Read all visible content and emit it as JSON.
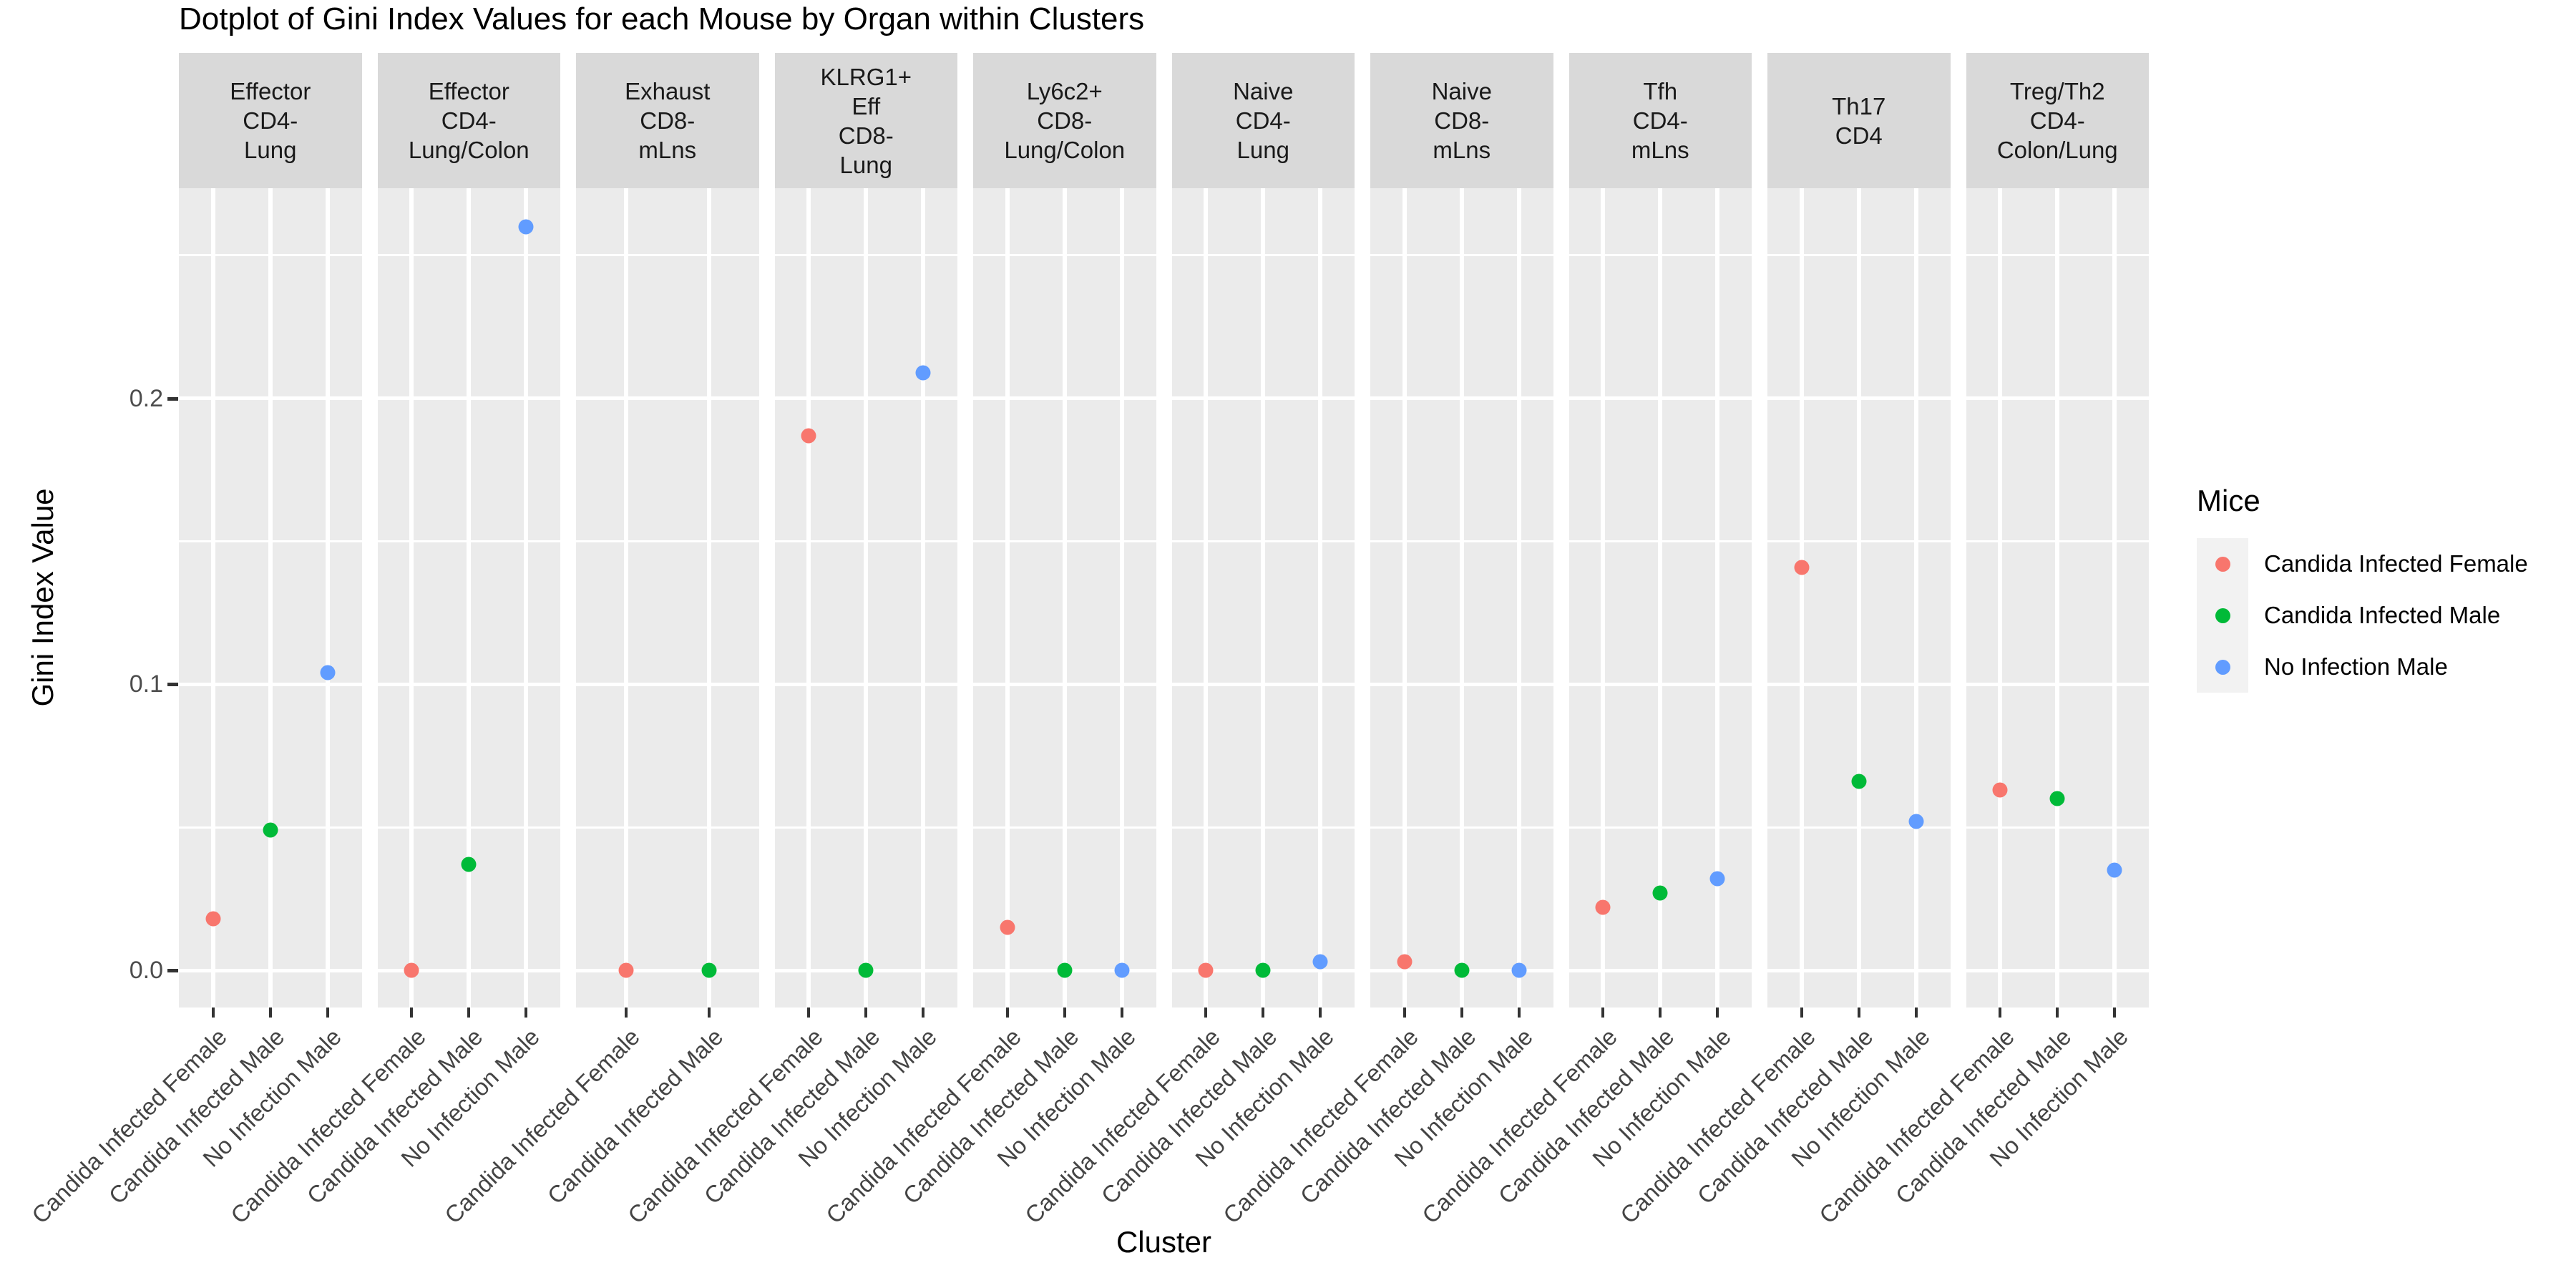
{
  "chart_data": {
    "type": "scatter",
    "title": "Dotplot of Gini Index Values for each Mouse by Organ within Clusters",
    "xlabel": "Cluster",
    "ylabel": "Gini Index Value",
    "y_domain": [
      -0.013,
      0.2735
    ],
    "y_ticks": [
      {
        "label": "0.0",
        "value": 0.0
      },
      {
        "label": "0.1",
        "value": 0.1
      },
      {
        "label": "0.2",
        "value": 0.2
      }
    ],
    "y_major_gridlines": [
      0.0,
      0.1,
      0.2
    ],
    "y_minor_gridlines": [
      0.05,
      0.15,
      0.25
    ],
    "grid": true,
    "panel_background": "#EBEBEB",
    "strip_background": "#D9D9D9",
    "legend": {
      "title": "Mice",
      "position": "right",
      "entries": [
        {
          "label": "Candida Infected Female",
          "color": "#F8766D"
        },
        {
          "label": "Candida Infected Male",
          "color": "#00BA38"
        },
        {
          "label": "No Infection Male",
          "color": "#619CFF"
        }
      ]
    },
    "facets": [
      {
        "label": "Effector\nCD4-\nLung",
        "points": [
          {
            "group": "Candida Infected Female",
            "value": 0.018
          },
          {
            "group": "Candida Infected Male",
            "value": 0.049
          },
          {
            "group": "No Infection Male",
            "value": 0.104
          }
        ]
      },
      {
        "label": "Effector\nCD4-\nLung/Colon",
        "points": [
          {
            "group": "Candida Infected Female",
            "value": 0.0
          },
          {
            "group": "Candida Infected Male",
            "value": 0.037
          },
          {
            "group": "No Infection Male",
            "value": 0.26
          }
        ]
      },
      {
        "label": "Exhaust\nCD8-\nmLns",
        "points": [
          {
            "group": "Candida Infected Female",
            "value": 0.0
          },
          {
            "group": "Candida Infected Male",
            "value": 0.0
          }
        ]
      },
      {
        "label": "KLRG1+\nEff\nCD8-\nLung",
        "points": [
          {
            "group": "Candida Infected Female",
            "value": 0.187
          },
          {
            "group": "Candida Infected Male",
            "value": 0.0
          },
          {
            "group": "No Infection Male",
            "value": 0.209
          }
        ]
      },
      {
        "label": "Ly6c2+\nCD8-\nLung/Colon",
        "points": [
          {
            "group": "Candida Infected Female",
            "value": 0.015
          },
          {
            "group": "Candida Infected Male",
            "value": 0.0
          },
          {
            "group": "No Infection Male",
            "value": 0.0
          }
        ]
      },
      {
        "label": "Naive\nCD4-\nLung",
        "points": [
          {
            "group": "Candida Infected Female",
            "value": 0.0
          },
          {
            "group": "Candida Infected Male",
            "value": 0.0
          },
          {
            "group": "No Infection Male",
            "value": 0.003
          }
        ]
      },
      {
        "label": "Naive\nCD8-\nmLns",
        "points": [
          {
            "group": "Candida Infected Female",
            "value": 0.003
          },
          {
            "group": "Candida Infected Male",
            "value": 0.0
          },
          {
            "group": "No Infection Male",
            "value": 0.0
          }
        ]
      },
      {
        "label": "Tfh\nCD4-\nmLns",
        "points": [
          {
            "group": "Candida Infected Female",
            "value": 0.022
          },
          {
            "group": "Candida Infected Male",
            "value": 0.027
          },
          {
            "group": "No Infection Male",
            "value": 0.032
          }
        ]
      },
      {
        "label": "Th17\nCD4",
        "points": [
          {
            "group": "Candida Infected Female",
            "value": 0.141
          },
          {
            "group": "Candida Infected Male",
            "value": 0.066
          },
          {
            "group": "No Infection Male",
            "value": 0.052
          }
        ]
      },
      {
        "label": "Treg/Th2\nCD4-\nColon/Lung",
        "points": [
          {
            "group": "Candida Infected Female",
            "value": 0.063
          },
          {
            "group": "Candida Infected Male",
            "value": 0.06
          },
          {
            "group": "No Infection Male",
            "value": 0.035
          }
        ]
      }
    ]
  }
}
